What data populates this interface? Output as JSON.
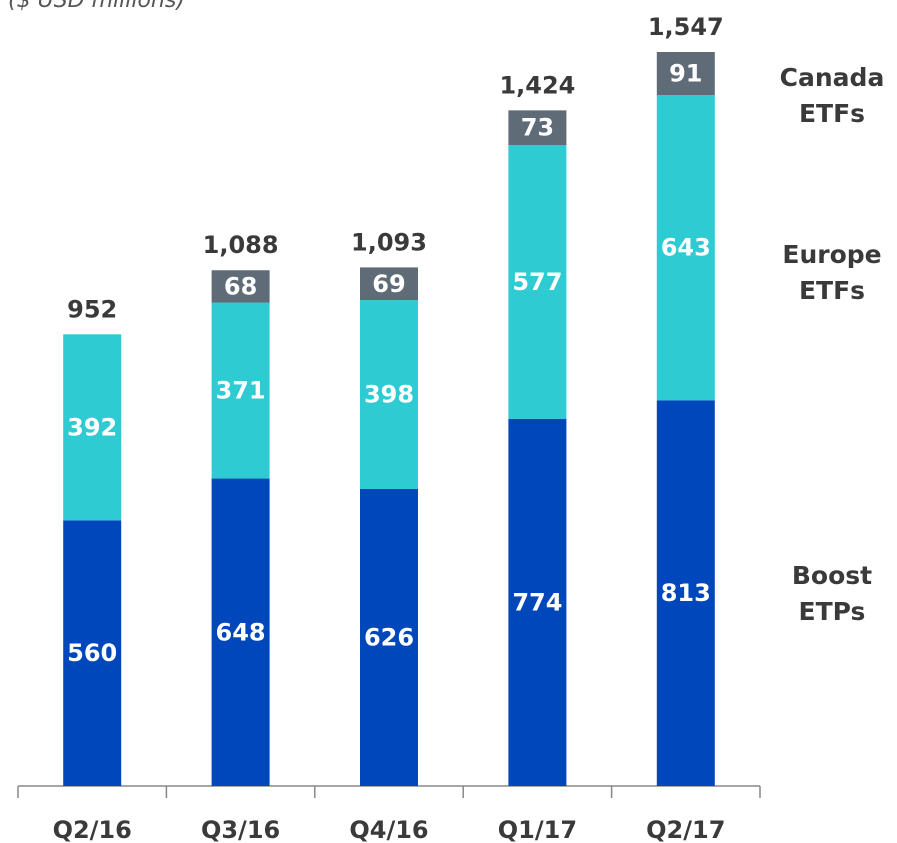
{
  "chart_data": {
    "type": "stacked_bar",
    "subtitle": "($ USD millions)",
    "categories": [
      "Q2/16",
      "Q3/16",
      "Q4/16",
      "Q1/17",
      "Q2/17"
    ],
    "series": [
      {
        "name": "Boost ETPs",
        "color": "#0047bb",
        "values": [
          560,
          648,
          626,
          774,
          813
        ]
      },
      {
        "name": "Europe ETFs",
        "color": "#2ecbd3",
        "values": [
          392,
          371,
          398,
          577,
          643
        ]
      },
      {
        "name": "Canada ETFs",
        "color": "#5f6b77",
        "values": [
          null,
          68,
          69,
          73,
          91
        ]
      }
    ],
    "totals": [
      952,
      1088,
      1093,
      1424,
      1547
    ],
    "total_labels": [
      "952",
      "1,088",
      "1,093",
      "1,424",
      "1,547"
    ]
  }
}
